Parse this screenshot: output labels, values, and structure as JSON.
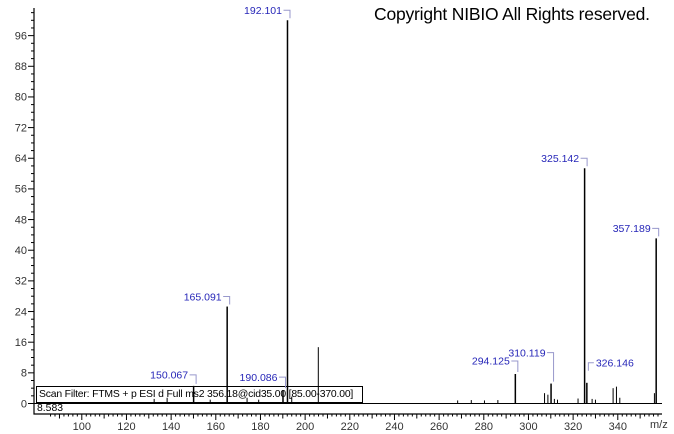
{
  "title": "Copyright NIBIO All Rights reserved.",
  "annotations": {
    "scan_filter": "Scan Filter: FTMS + p ESI d Full ms2 356.18@cid35.00 [85.00-370.00]",
    "retention_time": "8.583"
  },
  "colors": {
    "background": "#ffffff",
    "peak": "#000000",
    "axis": "#000000",
    "tick_label": "#333333",
    "peak_label": "#2626b8",
    "pointer": "#9898cc"
  },
  "chart_data": {
    "type": "bar",
    "subtype": "mass-spectrum",
    "title": "",
    "xlabel": "m/z",
    "ylabel": "",
    "xlim": [
      85,
      370
    ],
    "ylim": [
      0,
      103
    ],
    "grid": false,
    "x_major_ticks": [
      100,
      120,
      140,
      160,
      180,
      200,
      220,
      240,
      260,
      280,
      300,
      320,
      340
    ],
    "y_major_ticks": [
      0,
      8,
      16,
      24,
      32,
      40,
      48,
      56,
      64,
      72,
      80,
      88,
      96
    ],
    "labeled_peaks": [
      {
        "mz": 150.067,
        "intensity": 4.6,
        "label": "150.067",
        "side": "left",
        "label_dy": 11
      },
      {
        "mz": 165.091,
        "intensity": 25.3,
        "label": "165.091",
        "side": "left",
        "label_dy": 10
      },
      {
        "mz": 190.086,
        "intensity": 3.5,
        "label": "190.086",
        "side": "left",
        "label_dy": 13
      },
      {
        "mz": 192.101,
        "intensity": 100,
        "label": "192.101",
        "side": "left",
        "label_dy": 10
      },
      {
        "mz": 294.125,
        "intensity": 7.7,
        "label": "294.125",
        "side": "left",
        "label_dy": 13
      },
      {
        "mz": 310.119,
        "intensity": 5.2,
        "label": "310.119",
        "side": "left",
        "label_dy": 31
      },
      {
        "mz": 325.142,
        "intensity": 61.4,
        "label": "325.142",
        "side": "left",
        "label_dy": 10
      },
      {
        "mz": 326.146,
        "intensity": 5.4,
        "label": "326.146",
        "side": "right",
        "label_dy": 20
      },
      {
        "mz": 357.189,
        "intensity": 43.1,
        "label": "357.189",
        "side": "left",
        "label_dy": 10
      }
    ],
    "unlabeled_peaks": [
      {
        "mz": 132.4,
        "intensity": 1.2
      },
      {
        "mz": 138.2,
        "intensity": 1.5
      },
      {
        "mz": 157.5,
        "intensity": 1.0
      },
      {
        "mz": 174.0,
        "intensity": 1.5
      },
      {
        "mz": 179.2,
        "intensity": 1.0
      },
      {
        "mz": 194.0,
        "intensity": 1.8
      },
      {
        "mz": 205.9,
        "intensity": 14.7
      },
      {
        "mz": 268.3,
        "intensity": 0.8
      },
      {
        "mz": 274.4,
        "intensity": 0.9
      },
      {
        "mz": 280.3,
        "intensity": 0.8
      },
      {
        "mz": 286.3,
        "intensity": 0.9
      },
      {
        "mz": 307.2,
        "intensity": 2.7
      },
      {
        "mz": 308.7,
        "intensity": 2.3
      },
      {
        "mz": 311.6,
        "intensity": 1.2
      },
      {
        "mz": 313.0,
        "intensity": 1.0
      },
      {
        "mz": 322.2,
        "intensity": 1.3
      },
      {
        "mz": 328.5,
        "intensity": 1.2
      },
      {
        "mz": 330.0,
        "intensity": 1.0
      },
      {
        "mz": 337.9,
        "intensity": 4.0
      },
      {
        "mz": 339.4,
        "intensity": 4.4
      },
      {
        "mz": 340.9,
        "intensity": 1.5
      },
      {
        "mz": 356.4,
        "intensity": 2.7
      }
    ]
  }
}
